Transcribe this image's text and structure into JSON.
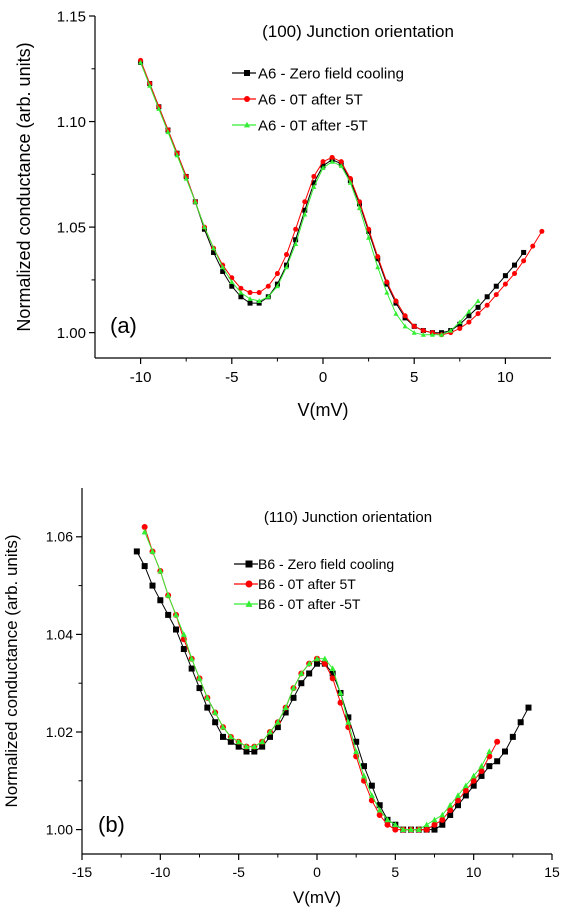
{
  "chart_data": [
    {
      "type": "line",
      "panel_label": "(a)",
      "annotation": "(100) Junction orientation",
      "xlabel": "V(mV)",
      "ylabel": "Normalized conductance (arb. units)",
      "xlim": [
        -12.5,
        12.5
      ],
      "ylim": [
        0.988,
        1.15
      ],
      "xticks": [
        "-10",
        "-5",
        "0",
        "5",
        "10"
      ],
      "xtick_values": [
        -10,
        -5,
        0,
        5,
        10
      ],
      "yticks": [
        "1.00",
        "1.05",
        "1.10",
        "1.15"
      ],
      "ytick_values": [
        1.0,
        1.05,
        1.1,
        1.15
      ],
      "legend_position": "top-right",
      "series": [
        {
          "name": "A6 - Zero field cooling",
          "color": "#000000",
          "marker": "square",
          "x": [
            -10.0,
            -9.5,
            -9.0,
            -8.5,
            -8.0,
            -7.5,
            -7.0,
            -6.5,
            -6.0,
            -5.5,
            -5.0,
            -4.5,
            -4.0,
            -3.5,
            -3.0,
            -2.5,
            -2.0,
            -1.5,
            -1.0,
            -0.5,
            0.0,
            0.5,
            1.0,
            1.5,
            2.0,
            2.5,
            3.0,
            3.5,
            4.0,
            4.5,
            5.0,
            5.5,
            6.0,
            6.5,
            7.0,
            7.5,
            8.0,
            8.5,
            9.0,
            9.5,
            10.0,
            10.5,
            11.0
          ],
          "y": [
            1.128,
            1.118,
            1.107,
            1.096,
            1.085,
            1.074,
            1.062,
            1.049,
            1.038,
            1.029,
            1.022,
            1.017,
            1.014,
            1.014,
            1.017,
            1.023,
            1.032,
            1.044,
            1.058,
            1.071,
            1.079,
            1.082,
            1.08,
            1.072,
            1.061,
            1.048,
            1.035,
            1.023,
            1.014,
            1.007,
            1.003,
            1.001,
            1.0,
            1.0,
            1.001,
            1.004,
            1.008,
            1.012,
            1.017,
            1.022,
            1.027,
            1.032,
            1.038
          ]
        },
        {
          "name": "A6 - 0T after 5T",
          "color": "#ff0000",
          "marker": "circle",
          "x": [
            -10.0,
            -9.5,
            -9.0,
            -8.5,
            -8.0,
            -7.5,
            -7.0,
            -6.5,
            -6.0,
            -5.5,
            -5.0,
            -4.5,
            -4.0,
            -3.5,
            -3.0,
            -2.5,
            -2.0,
            -1.5,
            -1.0,
            -0.5,
            0.0,
            0.5,
            1.0,
            1.5,
            2.0,
            2.5,
            3.0,
            3.5,
            4.0,
            4.5,
            5.0,
            5.5,
            6.0,
            6.5,
            7.0,
            7.5,
            8.0,
            8.5,
            9.0,
            9.5,
            10.0,
            10.5,
            11.0,
            11.5,
            12.0
          ],
          "y": [
            1.129,
            1.118,
            1.107,
            1.096,
            1.085,
            1.074,
            1.062,
            1.05,
            1.04,
            1.032,
            1.026,
            1.021,
            1.019,
            1.019,
            1.022,
            1.028,
            1.037,
            1.049,
            1.062,
            1.074,
            1.081,
            1.083,
            1.081,
            1.073,
            1.062,
            1.049,
            1.036,
            1.024,
            1.015,
            1.008,
            1.003,
            1.001,
            1.0,
            0.999,
            1.0,
            1.002,
            1.005,
            1.009,
            1.013,
            1.018,
            1.023,
            1.028,
            1.034,
            1.041,
            1.048
          ]
        },
        {
          "name": "A6 - 0T after -5T",
          "color": "#33ee33",
          "marker": "triangle",
          "x": [
            -10.0,
            -9.5,
            -9.0,
            -8.5,
            -8.0,
            -7.5,
            -7.0,
            -6.5,
            -6.0,
            -5.5,
            -5.0,
            -4.5,
            -4.0,
            -3.5,
            -3.0,
            -2.5,
            -2.0,
            -1.5,
            -1.0,
            -0.5,
            0.0,
            0.5,
            1.0,
            1.5,
            2.0,
            2.5,
            3.0,
            3.5,
            4.0,
            4.5,
            5.0,
            5.5,
            6.0,
            6.5,
            7.0,
            7.5,
            8.0,
            8.5
          ],
          "y": [
            1.128,
            1.117,
            1.106,
            1.095,
            1.084,
            1.073,
            1.062,
            1.05,
            1.04,
            1.031,
            1.024,
            1.019,
            1.016,
            1.015,
            1.017,
            1.022,
            1.031,
            1.042,
            1.056,
            1.069,
            1.078,
            1.081,
            1.079,
            1.071,
            1.059,
            1.045,
            1.031,
            1.019,
            1.009,
            1.003,
            1.0,
            0.999,
            0.999,
            0.999,
            1.001,
            1.005,
            1.01,
            1.015
          ]
        }
      ]
    },
    {
      "type": "line",
      "panel_label": "(b)",
      "annotation": "(110) Junction orientation",
      "xlabel": "V(mV)",
      "ylabel": "Normalized conductance (arb. units)",
      "xlim": [
        -15,
        15
      ],
      "ylim": [
        0.995,
        1.07
      ],
      "xticks": [
        "-15",
        "-10",
        "-5",
        "0",
        "5",
        "10",
        "15"
      ],
      "xtick_values": [
        -15,
        -10,
        -5,
        0,
        5,
        10,
        15
      ],
      "yticks": [
        "1.00",
        "1.02",
        "1.04",
        "1.06"
      ],
      "ytick_values": [
        1.0,
        1.02,
        1.04,
        1.06
      ],
      "legend_position": "top-right",
      "series": [
        {
          "name": "B6 - Zero field cooling",
          "color": "#000000",
          "marker": "square",
          "x": [
            -11.5,
            -11.0,
            -10.5,
            -10.0,
            -9.5,
            -9.0,
            -8.5,
            -8.0,
            -7.5,
            -7.0,
            -6.5,
            -6.0,
            -5.5,
            -5.0,
            -4.5,
            -4.0,
            -3.5,
            -3.0,
            -2.5,
            -2.0,
            -1.5,
            -1.0,
            -0.5,
            0.0,
            0.5,
            1.0,
            1.5,
            2.0,
            2.5,
            3.0,
            3.5,
            4.0,
            4.5,
            5.0,
            5.5,
            6.0,
            6.5,
            7.0,
            7.5,
            8.0,
            8.5,
            9.0,
            9.5,
            10.0,
            10.5,
            11.0,
            11.5,
            12.0,
            12.5,
            13.0,
            13.5
          ],
          "y": [
            1.057,
            1.054,
            1.05,
            1.047,
            1.044,
            1.041,
            1.037,
            1.033,
            1.029,
            1.025,
            1.022,
            1.019,
            1.018,
            1.017,
            1.016,
            1.016,
            1.017,
            1.019,
            1.021,
            1.024,
            1.027,
            1.03,
            1.032,
            1.034,
            1.034,
            1.032,
            1.028,
            1.023,
            1.018,
            1.013,
            1.009,
            1.005,
            1.002,
            1.001,
            1.0,
            1.0,
            1.0,
            1.0,
            1.0,
            1.001,
            1.003,
            1.005,
            1.007,
            1.009,
            1.011,
            1.013,
            1.014,
            1.016,
            1.019,
            1.022,
            1.025
          ]
        },
        {
          "name": "B6 - 0T after 5T",
          "color": "#ff0000",
          "marker": "circle",
          "x": [
            -11.0,
            -10.5,
            -10.0,
            -9.5,
            -9.0,
            -8.5,
            -8.0,
            -7.5,
            -7.0,
            -6.5,
            -6.0,
            -5.5,
            -5.0,
            -4.5,
            -4.0,
            -3.5,
            -3.0,
            -2.5,
            -2.0,
            -1.5,
            -1.0,
            -0.5,
            0.0,
            0.5,
            1.0,
            1.5,
            2.0,
            2.5,
            3.0,
            3.5,
            4.0,
            4.5,
            5.0,
            5.5,
            6.0,
            6.5,
            7.0,
            7.5,
            8.0,
            8.5,
            9.0,
            9.5,
            10.0,
            10.5,
            11.0,
            11.5
          ],
          "y": [
            1.062,
            1.057,
            1.053,
            1.048,
            1.044,
            1.039,
            1.035,
            1.031,
            1.027,
            1.024,
            1.021,
            1.019,
            1.018,
            1.017,
            1.017,
            1.018,
            1.02,
            1.022,
            1.025,
            1.029,
            1.032,
            1.034,
            1.035,
            1.034,
            1.031,
            1.026,
            1.021,
            1.015,
            1.01,
            1.006,
            1.003,
            1.001,
            1.0,
            1.0,
            1.0,
            1.0,
            1.0,
            1.001,
            1.002,
            1.004,
            1.006,
            1.008,
            1.01,
            1.012,
            1.015,
            1.018
          ]
        },
        {
          "name": "B6 - 0T after -5T",
          "color": "#33ee33",
          "marker": "triangle",
          "x": [
            -11.0,
            -10.5,
            -10.0,
            -9.5,
            -9.0,
            -8.5,
            -8.0,
            -7.5,
            -7.0,
            -6.5,
            -6.0,
            -5.5,
            -5.0,
            -4.5,
            -4.0,
            -3.5,
            -3.0,
            -2.5,
            -2.0,
            -1.5,
            -1.0,
            -0.5,
            0.0,
            0.5,
            1.0,
            1.5,
            2.0,
            2.5,
            3.0,
            3.5,
            4.0,
            4.5,
            5.0,
            5.5,
            6.0,
            6.5,
            7.0,
            7.5,
            8.0,
            8.5,
            9.0,
            9.5,
            10.0,
            10.5,
            11.0
          ],
          "y": [
            1.061,
            1.057,
            1.053,
            1.048,
            1.044,
            1.04,
            1.035,
            1.031,
            1.027,
            1.024,
            1.021,
            1.019,
            1.018,
            1.017,
            1.017,
            1.018,
            1.02,
            1.022,
            1.025,
            1.029,
            1.032,
            1.034,
            1.035,
            1.035,
            1.033,
            1.028,
            1.022,
            1.016,
            1.011,
            1.007,
            1.004,
            1.002,
            1.001,
            1.0,
            1.0,
            1.0,
            1.001,
            1.002,
            1.003,
            1.005,
            1.007,
            1.009,
            1.011,
            1.013,
            1.016
          ]
        }
      ]
    }
  ]
}
